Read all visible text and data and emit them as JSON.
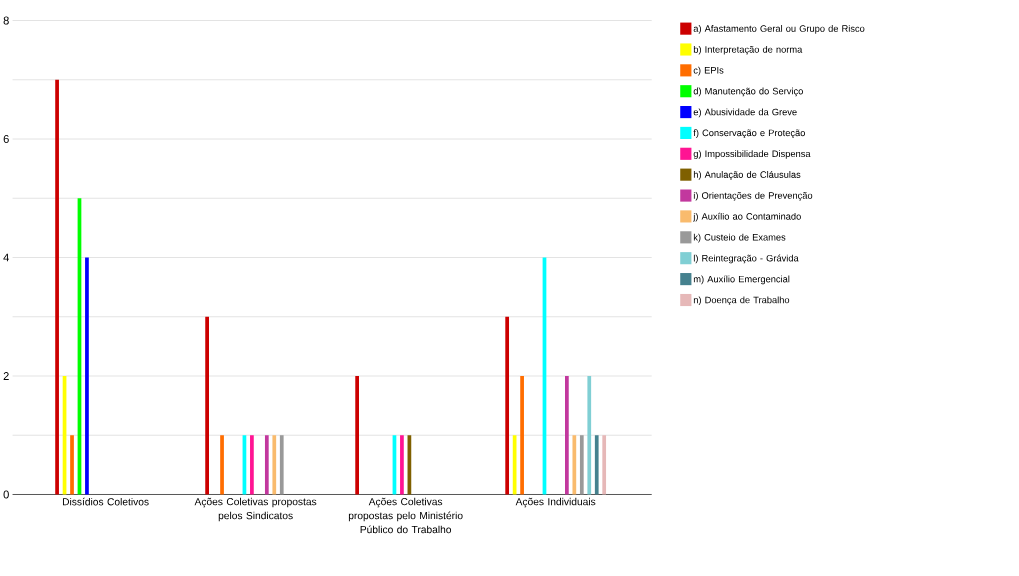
{
  "chart_data": {
    "type": "bar",
    "categories": [
      "Dissídios Coletivos",
      "Ações Coletivas propostas pelos Sindicatos",
      "Ações Coletivas propostas pelo Ministério Público do Trabalho",
      "Ações Individuais"
    ],
    "series": [
      {
        "name": "a) Afastamento Geral ou Grupo de Risco",
        "color": "#cc0000",
        "values": [
          7,
          3,
          2,
          3
        ]
      },
      {
        "name": "b) Interpretação de norma",
        "color": "#ffff00",
        "values": [
          2,
          0,
          0,
          1
        ]
      },
      {
        "name": "c) EPIs",
        "color": "#ff6d00",
        "values": [
          1,
          1,
          0,
          2
        ]
      },
      {
        "name": "d) Manutenção do Serviço",
        "color": "#00ff00",
        "values": [
          5,
          0,
          0,
          0
        ]
      },
      {
        "name": "e) Abusividade da Greve",
        "color": "#0000ff",
        "values": [
          4,
          0,
          0,
          0
        ]
      },
      {
        "name": "f) Conservação e Proteção",
        "color": "#00ffff",
        "values": [
          0,
          1,
          1,
          4
        ]
      },
      {
        "name": "g) Impossibilidade Dispensa",
        "color": "#ff1493",
        "values": [
          0,
          1,
          1,
          0
        ]
      },
      {
        "name": "h) Anulação de Cláusulas",
        "color": "#7f6000",
        "values": [
          0,
          0,
          1,
          0
        ]
      },
      {
        "name": "i) Orientações de Prevenção",
        "color": "#c2389e",
        "values": [
          0,
          1,
          0,
          2
        ]
      },
      {
        "name": "j) Auxílio ao Contaminado",
        "color": "#f9bb6d",
        "values": [
          0,
          1,
          0,
          1
        ]
      },
      {
        "name": "k) Custeio de Exames",
        "color": "#999999",
        "values": [
          0,
          1,
          0,
          1
        ]
      },
      {
        "name": "l) Reintegração - Grávida",
        "color": "#80cfd4",
        "values": [
          0,
          0,
          0,
          2
        ]
      },
      {
        "name": "m) Auxílio Emergencial",
        "color": "#45818e",
        "values": [
          0,
          0,
          0,
          1
        ]
      },
      {
        "name": "n) Doença de Trabalho",
        "color": "#e6b8b8",
        "values": [
          0,
          0,
          0,
          1
        ]
      }
    ],
    "ylim": [
      0,
      8
    ],
    "yticks": [
      0,
      {
        "value": 1,
        "label": null
      },
      2,
      {
        "value": 3,
        "label": null
      },
      4,
      {
        "value": 5,
        "label": null
      },
      6,
      {
        "value": 7,
        "label": null
      },
      8
    ],
    "grid": "y",
    "legend": "right"
  }
}
